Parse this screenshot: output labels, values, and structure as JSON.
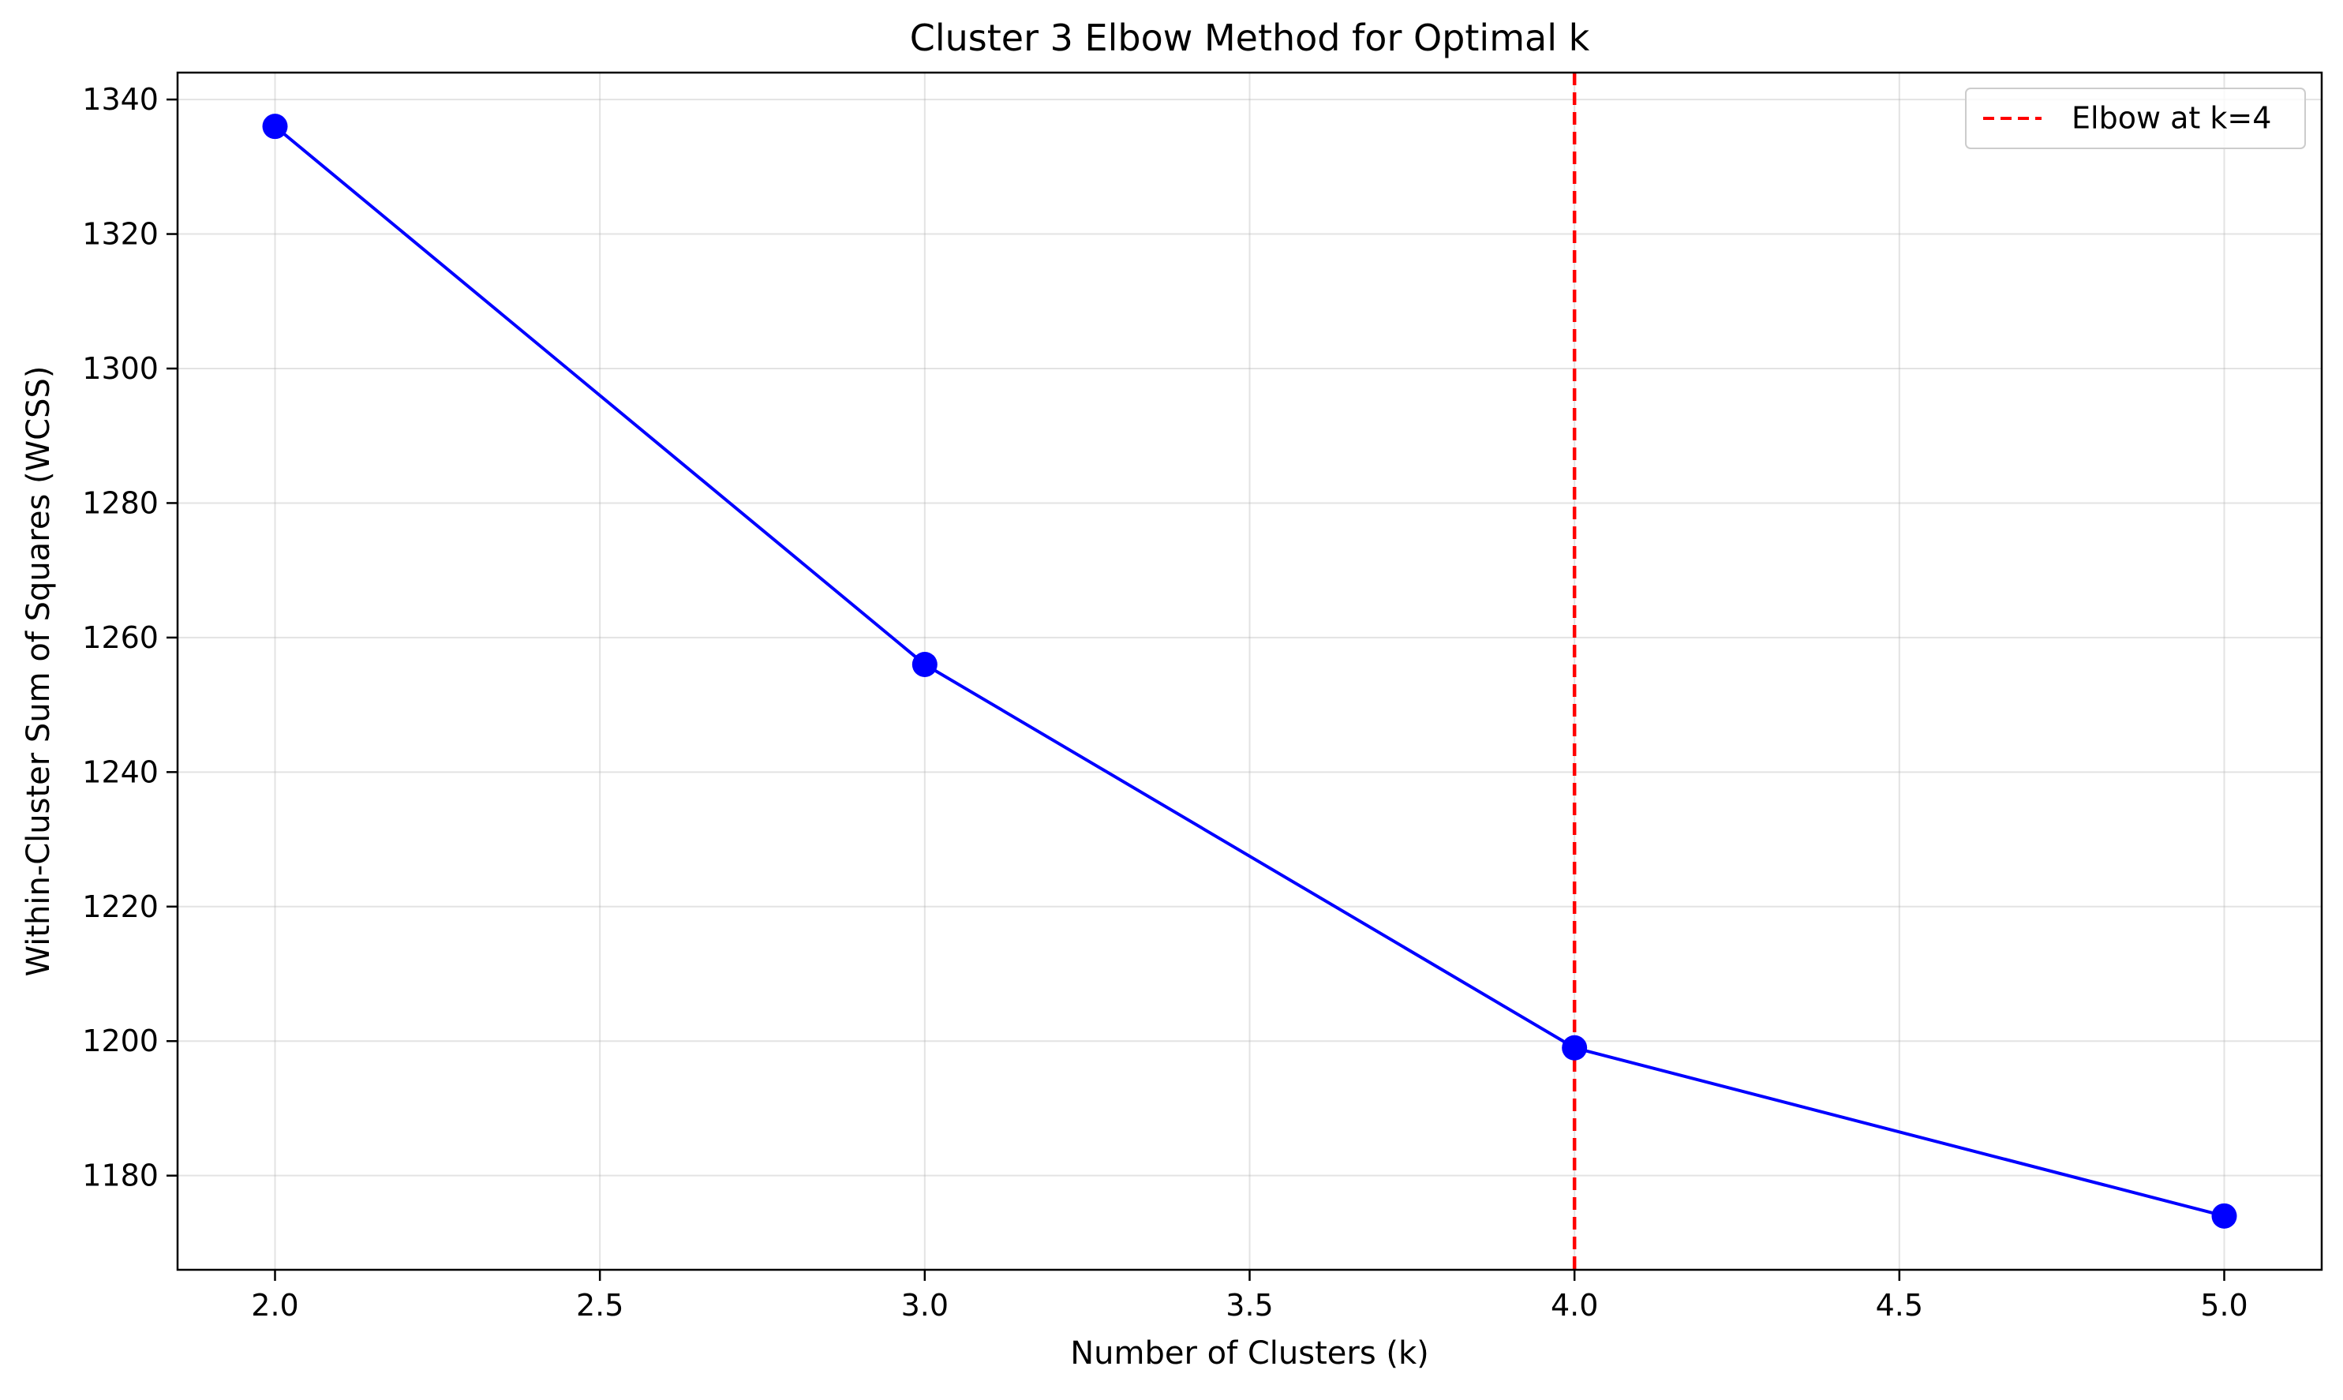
{
  "chart_data": {
    "type": "line",
    "title": "Cluster 3 Elbow Method for Optimal k",
    "xlabel": "Number of Clusters (k)",
    "ylabel": "Within-Cluster Sum of Squares (WCSS)",
    "xlim": [
      1.85,
      5.15
    ],
    "ylim": [
      1166,
      1344
    ],
    "x_ticks": [
      2.0,
      2.5,
      3.0,
      3.5,
      4.0,
      4.5,
      5.0
    ],
    "x_tick_labels": [
      "2.0",
      "2.5",
      "3.0",
      "3.5",
      "4.0",
      "4.5",
      "5.0"
    ],
    "y_ticks": [
      1180,
      1200,
      1220,
      1240,
      1260,
      1280,
      1300,
      1320,
      1340
    ],
    "y_tick_labels": [
      "1180",
      "1200",
      "1220",
      "1240",
      "1260",
      "1280",
      "1300",
      "1320",
      "1340"
    ],
    "grid": true,
    "series": [
      {
        "x": [
          2,
          3,
          4,
          5
        ],
        "values": [
          1336,
          1256,
          1199,
          1174
        ],
        "color": "#0000ff",
        "marker": "circle"
      }
    ],
    "annotations": [
      {
        "type": "vline",
        "x": 4,
        "color": "#ff0000",
        "style": "dashed",
        "label": "Elbow at k=4"
      }
    ],
    "legend": {
      "placement": "top-right",
      "entries": [
        {
          "label": "Elbow at k=4",
          "color": "#ff0000",
          "style": "dashed"
        }
      ]
    }
  }
}
